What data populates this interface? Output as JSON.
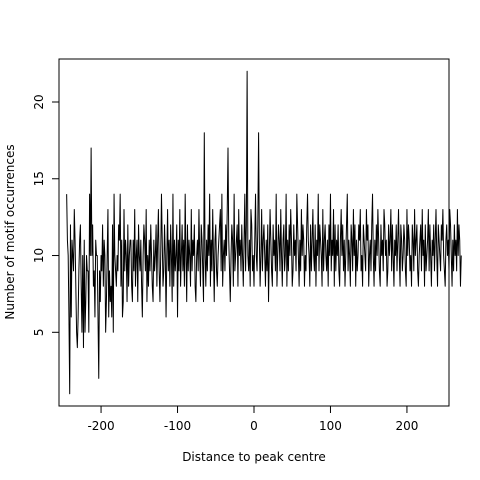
{
  "chart_data": {
    "type": "line",
    "title": "",
    "xlabel": "Distance to peak centre",
    "ylabel": "Number of motif occurrences",
    "xlim": [
      -255,
      255
    ],
    "ylim": [
      0.2,
      22.8
    ],
    "xticks": [
      -200,
      -100,
      0,
      100,
      200
    ],
    "xtick_labels": [
      "-200",
      "-100",
      "0",
      "100",
      "200"
    ],
    "yticks": [
      5,
      10,
      15,
      20
    ],
    "ytick_labels": [
      "5",
      "10",
      "15",
      "20"
    ],
    "grid": false,
    "legend": "none",
    "line_color": "#000000",
    "series": [
      {
        "x_start": -245,
        "x_step": 1,
        "values": [
          14,
          11,
          10,
          6,
          1,
          12,
          6,
          11,
          10,
          9,
          13,
          11,
          8,
          5,
          4,
          6,
          9,
          11,
          12,
          8,
          5,
          10,
          4,
          11,
          5,
          7,
          10,
          9,
          9,
          5,
          14,
          10,
          17,
          10,
          12,
          8,
          9,
          6,
          11,
          10,
          10,
          6,
          2,
          9,
          7,
          10,
          9,
          12,
          8,
          11,
          10,
          5,
          7,
          10,
          13,
          6,
          9,
          7,
          8,
          6,
          12,
          5,
          14,
          10,
          9,
          8,
          10,
          9,
          12,
          11,
          14,
          8,
          11,
          6,
          7,
          13,
          9,
          11,
          10,
          7,
          12,
          8,
          10,
          11,
          11,
          8,
          7,
          11,
          9,
          13,
          8,
          10,
          11,
          7,
          12,
          10,
          9,
          11,
          8,
          6,
          10,
          12,
          11,
          9,
          13,
          7,
          10,
          8,
          11,
          9,
          12,
          10,
          8,
          7,
          11,
          9,
          10,
          12,
          8,
          11,
          13,
          9,
          7,
          10,
          14,
          11,
          8,
          9,
          12,
          10,
          6,
          10,
          13,
          9,
          11,
          8,
          12,
          10,
          7,
          14,
          8,
          11,
          9,
          10,
          12,
          6,
          11,
          9,
          13,
          8,
          10,
          12,
          9,
          11,
          8,
          14,
          10,
          7,
          12,
          9,
          11,
          10,
          8,
          13,
          9,
          11,
          10,
          12,
          8,
          7,
          10,
          11,
          9,
          13,
          10,
          8,
          12,
          11,
          9,
          7,
          18,
          10,
          8,
          11,
          9,
          12,
          10,
          14,
          8,
          11,
          9,
          13,
          10,
          7,
          11,
          12,
          9,
          8,
          10,
          11,
          12,
          13,
          9,
          14,
          8,
          10,
          11,
          9,
          12,
          10,
          13,
          17,
          11,
          9,
          7,
          10,
          12,
          11,
          8,
          14,
          9,
          10,
          11,
          12,
          8,
          13,
          10,
          11,
          9,
          12,
          10,
          8,
          11,
          14,
          9,
          12,
          22,
          10,
          9,
          11,
          8,
          13,
          12,
          9,
          10,
          8,
          11,
          14,
          10,
          9,
          12,
          18,
          11,
          8,
          10,
          13,
          9,
          11,
          12,
          10,
          8,
          11,
          9,
          12,
          7,
          10,
          13,
          11,
          9,
          8,
          12,
          10,
          11,
          9,
          14,
          8,
          10,
          12,
          11,
          9,
          13,
          10,
          8,
          11,
          12,
          9,
          10,
          14,
          8,
          11,
          9,
          12,
          10,
          13,
          11,
          8,
          9,
          12,
          10,
          11,
          9,
          14,
          12,
          10,
          8,
          11,
          9,
          13,
          10,
          12,
          11,
          8,
          10,
          9,
          12,
          14,
          11,
          10,
          8,
          12,
          9,
          11,
          13,
          10,
          9,
          12,
          8,
          11,
          10,
          14,
          9,
          12,
          11,
          10,
          8,
          13,
          9,
          11,
          12,
          10,
          9,
          11,
          8,
          12,
          10,
          14,
          9,
          11,
          10,
          13,
          8,
          12,
          9,
          11,
          10,
          12,
          9,
          8,
          11,
          13,
          10,
          12,
          9,
          11,
          8,
          10,
          12,
          14,
          9,
          11,
          10,
          8,
          12,
          11,
          9,
          13,
          10,
          12,
          8,
          11,
          9,
          10,
          12,
          11,
          13,
          9,
          10,
          8,
          12,
          11,
          10,
          9,
          13,
          11,
          12,
          8,
          10,
          11,
          9,
          12,
          14,
          10,
          8,
          11,
          9,
          12,
          10,
          13,
          11,
          9,
          8,
          12,
          10,
          11,
          9,
          13,
          12,
          10,
          11,
          8,
          9,
          12,
          10,
          11,
          13,
          9,
          12,
          10,
          8,
          11,
          10,
          12,
          9,
          11,
          13,
          10,
          8,
          12,
          11,
          9,
          10,
          12,
          11,
          9,
          8,
          13,
          10,
          12,
          11,
          9,
          10,
          8,
          12,
          11,
          9,
          13,
          10,
          11,
          12,
          9,
          8,
          10,
          11,
          12,
          9,
          13,
          10,
          11,
          8,
          12,
          9,
          10,
          11,
          13,
          9,
          12,
          10,
          8,
          11,
          10,
          12,
          9,
          11,
          13,
          10,
          8,
          12,
          11,
          10,
          9,
          12,
          11,
          13,
          10,
          9,
          8,
          11,
          12,
          10,
          11,
          9,
          13,
          12,
          10,
          8,
          11,
          9,
          12,
          10,
          11,
          9,
          13,
          10,
          12,
          11,
          8,
          10
        ]
      }
    ]
  }
}
